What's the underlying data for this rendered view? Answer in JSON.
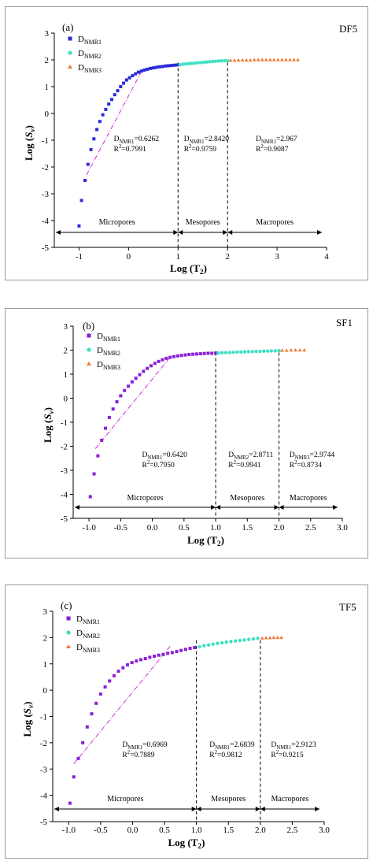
{
  "colors": {
    "nmr1": "#2b2bd9",
    "nmr1_alt": "#8a1fd6",
    "nmr2": "#3fe0c2",
    "nmr3": "#f07a3a",
    "fit": "#d42ad4",
    "axis": "#000000",
    "frame": "#9a9a9a"
  },
  "chart_data": [
    {
      "type": "scatter",
      "panel": "(a)",
      "sample": "DF5",
      "xlabel": "Log (T2)",
      "ylabel": "Log (Sv)",
      "xlim": [
        -1.5,
        4
      ],
      "ylim": [
        -5,
        3
      ],
      "xticks": [
        "-1",
        "0",
        "1",
        "2",
        "3",
        "4"
      ],
      "yticks": [
        "-5",
        "-4",
        "-3",
        "-2",
        "-1",
        "0",
        "1",
        "2",
        "3"
      ],
      "legend": [
        "DNMR1",
        "DNMR2",
        "DNMR3"
      ],
      "boundaries": [
        1,
        2
      ],
      "zones": [
        "Micropores",
        "Mesopores",
        "Macropores"
      ],
      "annotations": [
        {
          "d_label": "DNMR1=0.6262",
          "r2": "R2=0.7991"
        },
        {
          "d_label": "DNMR1=2.8420",
          "r2": "R2=0.9759"
        },
        {
          "d_label": "DNMR1=2.967",
          "r2": "R2=0.9087"
        }
      ],
      "series": [
        {
          "name": "DNMR1",
          "marker": "square",
          "x": [
            -1.0,
            -0.95,
            -0.88,
            -0.82,
            -0.76,
            -0.7,
            -0.64,
            -0.58,
            -0.52,
            -0.46,
            -0.4,
            -0.34,
            -0.28,
            -0.22,
            -0.16,
            -0.1,
            -0.04,
            0.02,
            0.08,
            0.14,
            0.2,
            0.26,
            0.32,
            0.38,
            0.44,
            0.5,
            0.56,
            0.62,
            0.68,
            0.74,
            0.8,
            0.86,
            0.92,
            0.98
          ],
          "y": [
            -4.2,
            -3.25,
            -2.5,
            -1.9,
            -1.35,
            -0.95,
            -0.6,
            -0.3,
            -0.05,
            0.15,
            0.35,
            0.52,
            0.7,
            0.85,
            1.0,
            1.13,
            1.25,
            1.33,
            1.41,
            1.48,
            1.54,
            1.58,
            1.62,
            1.65,
            1.68,
            1.7,
            1.72,
            1.74,
            1.75,
            1.77,
            1.78,
            1.79,
            1.8,
            1.81
          ]
        },
        {
          "name": "DNMR2",
          "marker": "circle",
          "x": [
            1.04,
            1.1,
            1.16,
            1.22,
            1.28,
            1.34,
            1.4,
            1.46,
            1.52,
            1.58,
            1.64,
            1.7,
            1.76,
            1.82,
            1.88,
            1.94,
            2.0
          ],
          "y": [
            1.82,
            1.84,
            1.85,
            1.86,
            1.87,
            1.88,
            1.89,
            1.9,
            1.91,
            1.92,
            1.93,
            1.94,
            1.95,
            1.96,
            1.96,
            1.97,
            1.97
          ]
        },
        {
          "name": "DNMR3",
          "marker": "triangle",
          "x": [
            2.06,
            2.14,
            2.22,
            2.3,
            2.38,
            2.46,
            2.54,
            2.62,
            2.7,
            2.78,
            2.86,
            2.94,
            3.02,
            3.1,
            3.18,
            3.26,
            3.34,
            3.42
          ],
          "y": [
            1.98,
            1.98,
            1.99,
            1.99,
            1.99,
            1.99,
            2.0,
            2.0,
            2.0,
            2.0,
            2.0,
            2.0,
            2.0,
            2.0,
            2.0,
            2.0,
            2.0,
            2.0
          ]
        }
      ],
      "fit_line": {
        "x": [
          -0.85,
          0.3
        ],
        "y": [
          -2.3,
          1.7
        ]
      }
    },
    {
      "type": "scatter",
      "panel": "(b)",
      "sample": "SF1",
      "xlabel": "Log (T2)",
      "ylabel": "Log (Sv)",
      "xlim": [
        -1.25,
        3.0
      ],
      "ylim": [
        -5,
        3
      ],
      "xticks": [
        "-1.0",
        "-0.5",
        "0.0",
        "0.5",
        "1.0",
        "1.5",
        "2.0",
        "2.5",
        "3.0"
      ],
      "yticks": [
        "-5",
        "-4",
        "-3",
        "-2",
        "-1",
        "0",
        "1",
        "2",
        "3"
      ],
      "legend": [
        "DNMR1",
        "DNMR2",
        "DNMR3"
      ],
      "boundaries": [
        1.0,
        2.0
      ],
      "zones": [
        "Micropores",
        "Mesopores",
        "Macropores"
      ],
      "annotations": [
        {
          "d_label": "DNMR1=0.6420",
          "r2": "R2=0.7950"
        },
        {
          "d_label": "DNMR2=2.8711",
          "r2": "R2=0.9941"
        },
        {
          "d_label": "DNMR3=2.9744",
          "r2": "R2=0.8734"
        }
      ],
      "series": [
        {
          "name": "DNMR1",
          "marker": "square",
          "x": [
            -0.98,
            -0.92,
            -0.86,
            -0.8,
            -0.74,
            -0.68,
            -0.62,
            -0.56,
            -0.5,
            -0.44,
            -0.38,
            -0.32,
            -0.26,
            -0.2,
            -0.14,
            -0.08,
            -0.02,
            0.04,
            0.1,
            0.16,
            0.22,
            0.28,
            0.34,
            0.4,
            0.46,
            0.52,
            0.58,
            0.64,
            0.7,
            0.76,
            0.82,
            0.88,
            0.94,
            1.0
          ],
          "y": [
            -4.1,
            -3.15,
            -2.4,
            -1.75,
            -1.25,
            -0.8,
            -0.45,
            -0.15,
            0.1,
            0.32,
            0.5,
            0.68,
            0.83,
            0.98,
            1.12,
            1.24,
            1.35,
            1.45,
            1.53,
            1.6,
            1.66,
            1.7,
            1.73,
            1.76,
            1.78,
            1.8,
            1.82,
            1.83,
            1.84,
            1.85,
            1.86,
            1.87,
            1.87,
            1.88
          ]
        },
        {
          "name": "DNMR2",
          "marker": "circle",
          "x": [
            1.04,
            1.1,
            1.16,
            1.22,
            1.28,
            1.34,
            1.4,
            1.46,
            1.52,
            1.58,
            1.64,
            1.7,
            1.76,
            1.82,
            1.88,
            1.94,
            2.0
          ],
          "y": [
            1.88,
            1.89,
            1.9,
            1.9,
            1.91,
            1.92,
            1.92,
            1.93,
            1.94,
            1.94,
            1.95,
            1.95,
            1.96,
            1.96,
            1.97,
            1.97,
            1.98
          ]
        },
        {
          "name": "DNMR3",
          "marker": "triangle",
          "x": [
            2.05,
            2.12,
            2.19,
            2.26,
            2.33,
            2.4
          ],
          "y": [
            1.99,
            1.99,
            2.0,
            2.0,
            2.0,
            2.0
          ]
        }
      ],
      "fit_line": {
        "x": [
          -0.9,
          0.28
        ],
        "y": [
          -2.1,
          1.7
        ]
      }
    },
    {
      "type": "scatter",
      "panel": "(c)",
      "sample": "TF5",
      "xlabel": "Log (T2)",
      "ylabel": "Log (Sv)",
      "xlim": [
        -1.25,
        3.0
      ],
      "ylim": [
        -5,
        3
      ],
      "xticks": [
        "-1.0",
        "-0.5",
        "0.0",
        "0.5",
        "1.0",
        "1.5",
        "2.0",
        "2.5",
        "3.0"
      ],
      "yticks": [
        "-5",
        "-4",
        "-3",
        "-2",
        "-1",
        "0",
        "1",
        "2",
        "3"
      ],
      "legend": [
        "DNMR1",
        "DNMR2",
        "DNMR3"
      ],
      "boundaries": [
        1.0,
        2.0
      ],
      "zones": [
        "Micropores",
        "Mesopores",
        "Macropores"
      ],
      "annotations": [
        {
          "d_label": "DNMR1=0.6969",
          "r2": "R2=0.7889"
        },
        {
          "d_label": "DNMR1=2.6839",
          "r2": "R2=0.9812"
        },
        {
          "d_label": "DNMR1=2.9123",
          "r2": "R2=0.9215"
        }
      ],
      "series": [
        {
          "name": "DNMR1",
          "marker": "square",
          "x": [
            -0.98,
            -0.92,
            -0.85,
            -0.78,
            -0.71,
            -0.64,
            -0.57,
            -0.5,
            -0.43,
            -0.36,
            -0.29,
            -0.22,
            -0.15,
            -0.08,
            -0.01,
            0.06,
            0.13,
            0.2,
            0.27,
            0.34,
            0.41,
            0.48,
            0.55,
            0.62,
            0.69,
            0.76,
            0.83,
            0.9,
            0.97
          ],
          "y": [
            -4.3,
            -3.3,
            -2.6,
            -2.0,
            -1.4,
            -0.9,
            -0.5,
            -0.15,
            0.12,
            0.35,
            0.55,
            0.72,
            0.85,
            0.96,
            1.05,
            1.11,
            1.16,
            1.2,
            1.25,
            1.29,
            1.33,
            1.36,
            1.4,
            1.43,
            1.47,
            1.51,
            1.55,
            1.59,
            1.62
          ]
        },
        {
          "name": "DNMR2",
          "marker": "circle",
          "x": [
            1.05,
            1.12,
            1.19,
            1.26,
            1.33,
            1.4,
            1.47,
            1.54,
            1.61,
            1.68,
            1.75,
            1.82,
            1.89,
            1.96
          ],
          "y": [
            1.65,
            1.69,
            1.72,
            1.75,
            1.78,
            1.8,
            1.83,
            1.85,
            1.87,
            1.89,
            1.91,
            1.93,
            1.95,
            1.97
          ]
        },
        {
          "name": "DNMR3",
          "marker": "triangle",
          "x": [
            2.03,
            2.09,
            2.15,
            2.21,
            2.27,
            2.33
          ],
          "y": [
            1.98,
            1.99,
            1.99,
            2.0,
            2.0,
            2.0
          ]
        }
      ],
      "fit_line": {
        "x": [
          -0.92,
          0.6
        ],
        "y": [
          -2.8,
          1.7
        ]
      }
    }
  ]
}
